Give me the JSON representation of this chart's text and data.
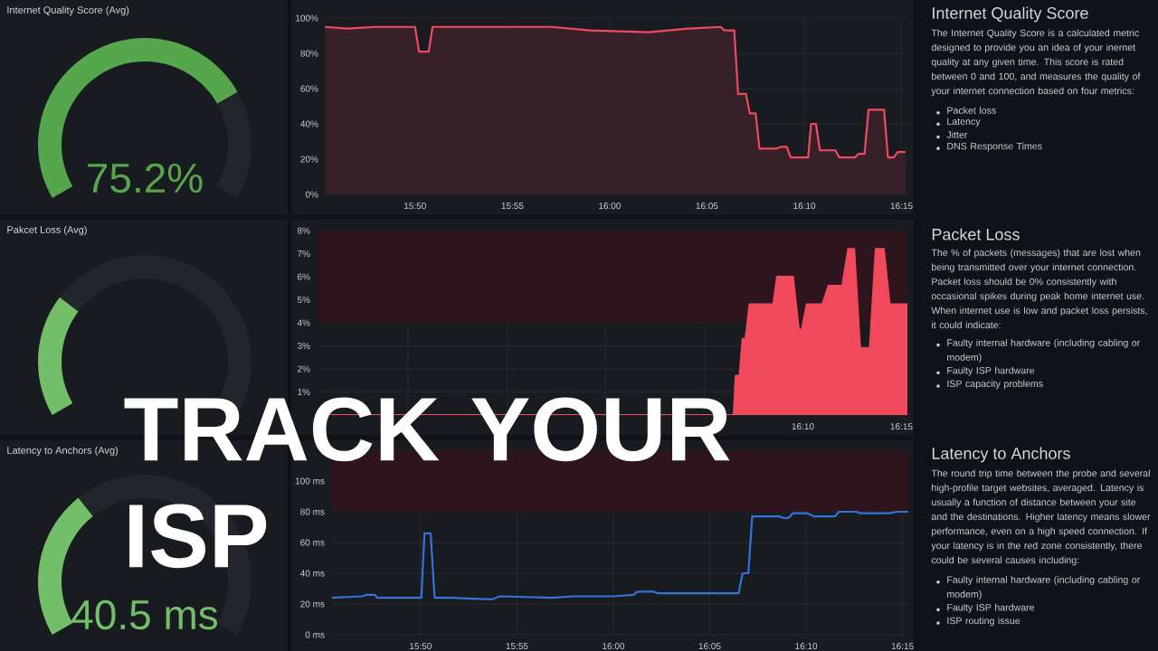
{
  "chart_data": [
    {
      "type": "donut",
      "title": "Internet Quality Score (Avg)",
      "categories": [
        null,
        null
      ],
      "values": [
        75.2,
        24.8
      ],
      "colors": [
        "#56a64b",
        "#22252b"
      ],
      "annotations": [
        "75.2%"
      ]
    },
    {
      "type": "donut",
      "title": "Pakcet Loss (Avg)",
      "categories": [
        null,
        null
      ],
      "values": [
        28,
        72
      ],
      "colors": [
        "#73bf69",
        "#22252b"
      ]
    },
    {
      "type": "donut",
      "title": "Latency to Anchors (Avg)",
      "categories": [
        null,
        null
      ],
      "values": [
        34,
        66
      ],
      "colors": [
        "#73bf69",
        "#22252b"
      ],
      "annotations": [
        "40.5 ms"
      ]
    },
    {
      "type": "area",
      "color": "#f2495c",
      "grid": true,
      "xlim": [
        15.756,
        16.255
      ],
      "ylim": [
        0,
        100
      ],
      "xticks": [
        {
          "value": 15.8333,
          "label": "15:50"
        },
        {
          "value": 15.9167,
          "label": "15:55"
        },
        {
          "value": 16,
          "label": "16:00"
        },
        {
          "value": 16.0833,
          "label": "16:05"
        },
        {
          "value": 16.1667,
          "label": "16:10"
        },
        {
          "value": 16.25,
          "label": "16:15"
        }
      ],
      "yticks": [
        {
          "value": 0,
          "label": "0%"
        },
        {
          "value": 20,
          "label": "20%"
        },
        {
          "value": 40,
          "label": "40%"
        },
        {
          "value": 60,
          "label": "60%"
        },
        {
          "value": 80,
          "label": "80%"
        },
        {
          "value": 100,
          "label": "100%"
        }
      ],
      "x": [
        15.756,
        15.775,
        15.8,
        15.8333,
        15.8367,
        15.845,
        15.8483,
        15.9167,
        15.95,
        15.9833,
        16.0333,
        16.0667,
        16.095,
        16.0983,
        16.1067,
        16.11,
        16.1167,
        16.12,
        16.125,
        16.1283,
        16.1433,
        16.1467,
        16.1517,
        16.155,
        16.17,
        16.1725,
        16.1767,
        16.18,
        16.1933,
        16.1967,
        16.21,
        16.2133,
        16.2183,
        16.2217,
        16.235,
        16.2383,
        16.2433,
        16.2467,
        16.2533
      ],
      "values": [
        95,
        94,
        95,
        95,
        81,
        81,
        95,
        95,
        95,
        93,
        92,
        94,
        95,
        93,
        93,
        57,
        57,
        46,
        46,
        26,
        26,
        27,
        27,
        21,
        21,
        40,
        40,
        25,
        25,
        21,
        21,
        23,
        23,
        48,
        48,
        21,
        21,
        24,
        24
      ]
    },
    {
      "type": "area",
      "color": "#f2495c",
      "grid": true,
      "xlim": [
        15.756,
        16.255
      ],
      "ylim": [
        0,
        8
      ],
      "xticks": [
        {
          "value": 15.8333,
          "label": null
        },
        {
          "value": 15.9167,
          "label": null
        },
        {
          "value": 16,
          "label": null
        },
        {
          "value": 16.0833,
          "label": null
        },
        {
          "value": 16.1667,
          "label": "16:10"
        },
        {
          "value": 16.25,
          "label": "16:15"
        }
      ],
      "yticks": [
        {
          "value": 0,
          "label": null
        },
        {
          "value": 1,
          "label": "1%"
        },
        {
          "value": 2,
          "label": "2%"
        },
        {
          "value": 3,
          "label": "3%"
        },
        {
          "value": 4,
          "label": "4%"
        },
        {
          "value": 5,
          "label": "5%"
        },
        {
          "value": 6,
          "label": "6%"
        },
        {
          "value": 7,
          "label": "7%"
        },
        {
          "value": 8,
          "label": "8%"
        }
      ],
      "bands": [
        {
          "axis": "y",
          "from": 4,
          "to": 8,
          "color": "#2e141c"
        }
      ],
      "x": [
        15.756,
        16.1083,
        16.11,
        16.1133,
        16.1158,
        16.1183,
        16.1217,
        16.1417,
        16.145,
        16.1583,
        16.1633,
        16.1658,
        16.17,
        16.1833,
        16.1883,
        16.2,
        16.205,
        16.21,
        16.215,
        16.2233,
        16.2283,
        16.235,
        16.24,
        16.255
      ],
      "values": [
        0,
        0,
        1.7,
        1.7,
        3.3,
        3.3,
        4.8,
        4.8,
        6,
        6,
        3.7,
        3.7,
        4.8,
        4.8,
        5.6,
        5.6,
        7.2,
        7.2,
        2.9,
        2.9,
        7.2,
        7.2,
        4.8,
        4.8
      ]
    },
    {
      "type": "line",
      "color": "#3274d9",
      "grid": true,
      "xlim": [
        15.756,
        16.255
      ],
      "ylim": [
        0,
        120
      ],
      "xticks": [
        {
          "value": 15.8333,
          "label": "15:50"
        },
        {
          "value": 15.9167,
          "label": "15:55"
        },
        {
          "value": 16,
          "label": "16:00"
        },
        {
          "value": 16.0833,
          "label": "16:05"
        },
        {
          "value": 16.1667,
          "label": "16:10"
        },
        {
          "value": 16.25,
          "label": "16:15"
        }
      ],
      "yticks": [
        {
          "value": 0,
          "label": "0 ms"
        },
        {
          "value": 20,
          "label": "20 ms"
        },
        {
          "value": 40,
          "label": "40 ms"
        },
        {
          "value": 60,
          "label": "60 ms"
        },
        {
          "value": 80,
          "label": "80 ms"
        },
        {
          "value": 100,
          "label": "100 ms"
        },
        {
          "value": 120,
          "label": null
        }
      ],
      "bands": [
        {
          "axis": "y",
          "from": 80,
          "to": 120,
          "color": "#2e141c"
        }
      ],
      "x": [
        15.7565,
        15.7833,
        15.7867,
        15.7938,
        15.7957,
        15.8183,
        15.8217,
        15.834,
        15.8367,
        15.842,
        15.8455,
        15.86,
        15.895,
        15.9017,
        15.9477,
        15.965,
        16.0,
        16.0175,
        16.021,
        16.035,
        16.0383,
        16.07,
        16.1083,
        16.1117,
        16.1167,
        16.12,
        16.1433,
        16.1467,
        16.1517,
        16.155,
        16.1677,
        16.1733,
        16.1917,
        16.195,
        16.21,
        16.2133,
        16.2383,
        16.245,
        16.255
      ],
      "values": [
        24,
        25,
        26,
        26,
        24,
        24,
        24,
        24,
        66,
        66,
        24,
        24,
        23,
        25,
        24,
        25,
        25,
        26,
        28,
        28,
        27,
        27,
        27,
        40,
        40,
        77,
        77,
        76,
        76,
        79,
        79,
        77,
        77,
        80,
        80,
        79,
        79,
        80,
        80
      ]
    },
    {
      "type": "other",
      "title": "Internet Quality Score",
      "annotations": [
        "The Internet Quality Score is a calculated metric designed to provide you an idea of your inernet quality at any given time. This score is rated between 0 and 100, and measures the quality of your internet connection based on four metrics:",
        "Packet loss",
        "Latency",
        "Jitter",
        "DNS Response Times"
      ]
    },
    {
      "type": "other",
      "title": "Packet Loss",
      "annotations": [
        "The % of packets (messages) that are lost when being transmitted over your internet connection. Packet loss should be 0% consistently with occasional spikes during peak home internet use. When internet use is low and packet loss persists, it could indicate:",
        "Faulty internal hardware (including cabling or modem)",
        "Faulty ISP hardware",
        "ISP capacity problems"
      ]
    },
    {
      "type": "other",
      "title": "Latency to Anchors",
      "annotations": [
        "The round trip time between the probe and several high-profile target websites, averaged. Latency is usually a function of distance between your site and the destinations. Higher latency means slower performance, even on a high speed connection. If your latency is in the red zone consistently, there could be several causes including:",
        "Faulty internal hardware (including cabling or modem)",
        "Faulty ISP hardware",
        "ISP routing issue"
      ]
    },
    {
      "type": "other",
      "title": "TRACK YOUR ISP"
    }
  ]
}
